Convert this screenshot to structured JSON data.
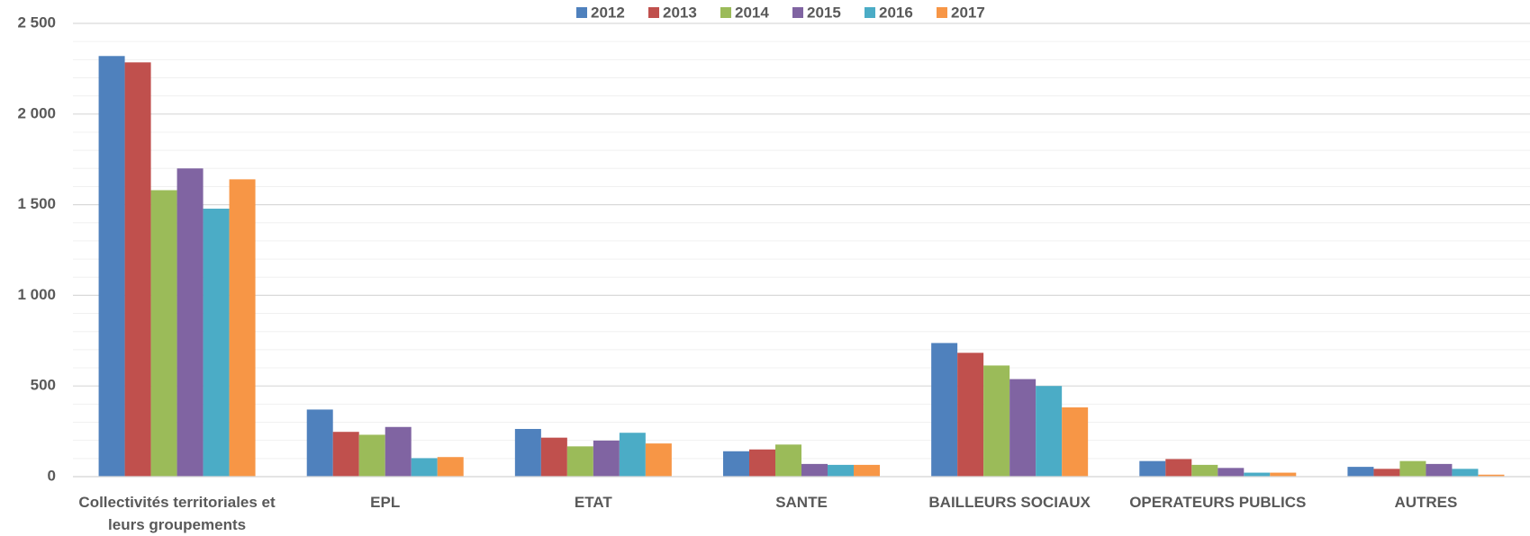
{
  "chart_data": {
    "type": "bar",
    "categories": [
      "Collectivités territoriales et leurs groupements",
      "EPL",
      "ETAT",
      "SANTE",
      "BAILLEURS SOCIAUX",
      "OPERATEURS PUBLICS",
      "AUTRES"
    ],
    "series": [
      {
        "name": "2012",
        "color": "#4f81bd",
        "values": [
          2320,
          370,
          263,
          140,
          737,
          86,
          54
        ]
      },
      {
        "name": "2013",
        "color": "#c0504d",
        "values": [
          2285,
          247,
          215,
          150,
          683,
          97,
          43
        ]
      },
      {
        "name": "2014",
        "color": "#9bbb59",
        "values": [
          1580,
          231,
          167,
          177,
          613,
          65,
          86
        ]
      },
      {
        "name": "2015",
        "color": "#8064a2",
        "values": [
          1700,
          274,
          199,
          70,
          538,
          48,
          70
        ]
      },
      {
        "name": "2016",
        "color": "#4bacc6",
        "values": [
          1478,
          102,
          242,
          65,
          500,
          22,
          43
        ]
      },
      {
        "name": "2017",
        "color": "#f79646",
        "values": [
          1640,
          108,
          183,
          65,
          382,
          22,
          11
        ]
      }
    ],
    "ylim": [
      0,
      2500
    ],
    "yticks": [
      {
        "value": 0,
        "label": "0"
      },
      {
        "value": 500,
        "label": "500"
      },
      {
        "value": 1000,
        "label": "1 000"
      },
      {
        "value": 1500,
        "label": "1 500"
      },
      {
        "value": 2000,
        "label": "2 000"
      },
      {
        "value": 2500,
        "label": "2 500"
      }
    ],
    "yminorticks": [
      100,
      200,
      300,
      400,
      600,
      700,
      800,
      900,
      1100,
      1200,
      1300,
      1400,
      1600,
      1700,
      1800,
      1900,
      2100,
      2200,
      2300,
      2400
    ],
    "grid": true,
    "legend": "top"
  }
}
